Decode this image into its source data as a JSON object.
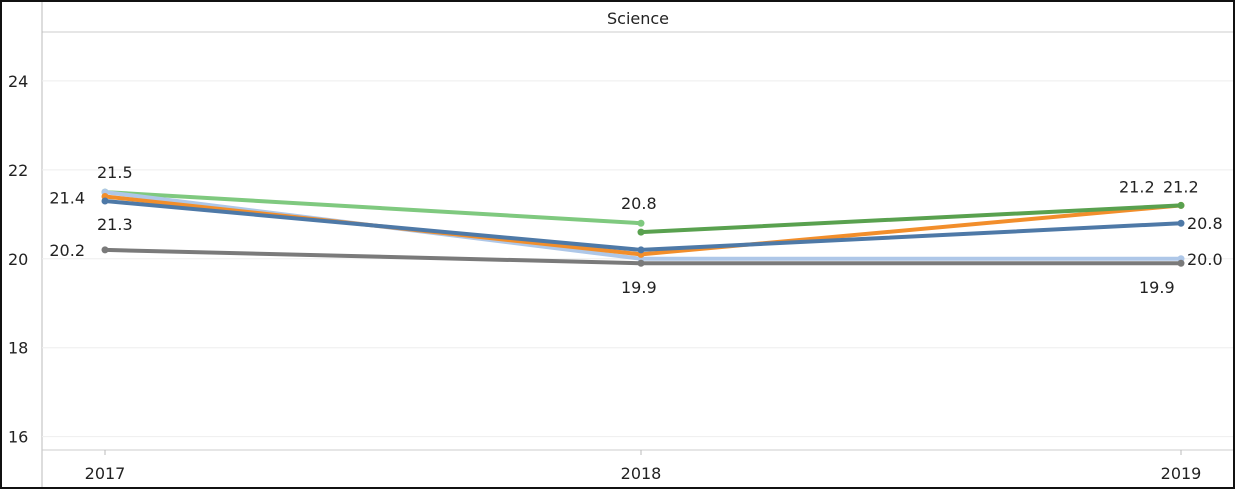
{
  "chart_data": {
    "type": "line",
    "title": "Science",
    "xlabel": "",
    "ylabel": "",
    "categories": [
      "2017",
      "2018",
      "2019"
    ],
    "ylim": [
      15.7,
      25.1
    ],
    "yticks": [
      16,
      18,
      20,
      22,
      24
    ],
    "grid": true,
    "series": [
      {
        "color": "#7fc97f",
        "values": [
          21.5,
          20.8,
          null
        ]
      },
      {
        "color": "#aec7e8",
        "values": [
          21.5,
          20.0,
          20.0
        ]
      },
      {
        "color": "#f28e2b",
        "values": [
          21.4,
          20.1,
          21.2
        ]
      },
      {
        "color": "#4e79a7",
        "values": [
          21.3,
          20.2,
          20.8
        ]
      },
      {
        "color": "#59a14f",
        "values": [
          null,
          20.6,
          21.2
        ]
      },
      {
        "color": "#7a7a7a",
        "values": [
          20.2,
          19.9,
          19.9
        ]
      }
    ],
    "data_labels": [
      {
        "category": "2017",
        "value": 21.5,
        "text": "21.5"
      },
      {
        "category": "2017",
        "value": 21.4,
        "text": "21.4"
      },
      {
        "category": "2017",
        "value": 21.3,
        "text": "21.3"
      },
      {
        "category": "2017",
        "value": 20.2,
        "text": "20.2"
      },
      {
        "category": "2018",
        "value": 20.8,
        "text": "20.8"
      },
      {
        "category": "2018",
        "value": 19.9,
        "text": "19.9"
      },
      {
        "category": "2019",
        "value": 21.2,
        "text": "21.2"
      },
      {
        "category": "2019",
        "value": 21.2,
        "text": "21.2"
      },
      {
        "category": "2019",
        "value": 20.8,
        "text": "20.8"
      },
      {
        "category": "2019",
        "value": 20.0,
        "text": "20.0"
      },
      {
        "category": "2019",
        "value": 19.9,
        "text": "19.9"
      }
    ]
  }
}
